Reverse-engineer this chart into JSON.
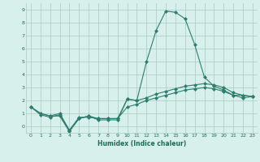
{
  "xlabel": "Humidex (Indice chaleur)",
  "ylabel": "",
  "x_values": [
    0,
    1,
    2,
    3,
    4,
    5,
    6,
    7,
    8,
    9,
    10,
    11,
    12,
    13,
    14,
    15,
    16,
    17,
    18,
    19,
    20,
    21,
    22,
    23
  ],
  "line1": [
    1.5,
    1.0,
    0.8,
    1.0,
    -0.3,
    0.7,
    0.7,
    0.6,
    0.6,
    0.6,
    2.1,
    2.0,
    5.0,
    7.4,
    8.9,
    8.8,
    8.3,
    6.3,
    3.8,
    3.1,
    2.8,
    2.4,
    2.4,
    2.3
  ],
  "line2": [
    1.5,
    1.0,
    0.8,
    0.8,
    -0.4,
    0.6,
    0.8,
    0.5,
    0.5,
    0.5,
    2.1,
    2.0,
    2.2,
    2.5,
    2.7,
    2.9,
    3.1,
    3.2,
    3.3,
    3.2,
    3.0,
    2.6,
    2.4,
    2.3
  ],
  "line3": [
    1.5,
    0.9,
    0.7,
    0.9,
    -0.3,
    0.6,
    0.8,
    0.6,
    0.6,
    0.6,
    1.5,
    1.7,
    2.0,
    2.2,
    2.4,
    2.6,
    2.8,
    2.9,
    3.0,
    2.9,
    2.7,
    2.4,
    2.2,
    2.3
  ],
  "ylim": [
    -0.5,
    9.5
  ],
  "xlim": [
    -0.5,
    23.5
  ],
  "yticks": [
    0,
    1,
    2,
    3,
    4,
    5,
    6,
    7,
    8,
    9
  ],
  "xticks": [
    0,
    1,
    2,
    3,
    4,
    5,
    6,
    7,
    8,
    9,
    10,
    11,
    12,
    13,
    14,
    15,
    16,
    17,
    18,
    19,
    20,
    21,
    22,
    23
  ],
  "line_color": "#2e7d6e",
  "bg_color": "#d8f0ec",
  "grid_color": "#a8c8c4",
  "font_color": "#1a6b5a",
  "marker": "D",
  "markersize": 2.0,
  "linewidth": 0.8
}
